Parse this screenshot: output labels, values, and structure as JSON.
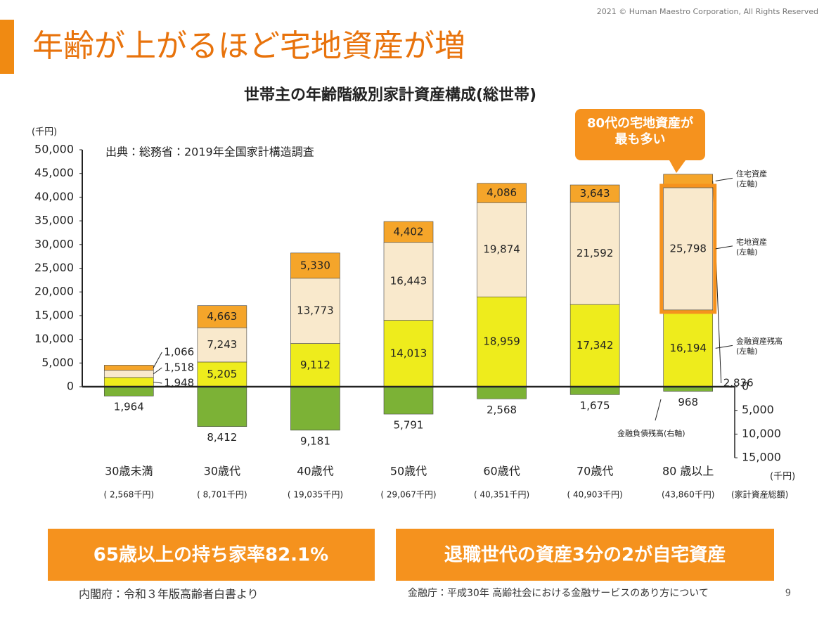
{
  "header": {
    "title": "年齢が上がるほど宅地資産が増",
    "copyright": "2021 © Human Maestro Corporation, All Rights Reserved"
  },
  "chart_data": {
    "type": "bar",
    "stacked": true,
    "title": "世帯主の年齢階級別家計資産構成(総世帯)",
    "source": "出典：総務省：2019年全国家計構造調査",
    "y_unit": "(千円)",
    "y2_unit": "(千円)",
    "category_notes_label": "(家計資産総額)",
    "annotation": "80代の宅地資産が\n最も多い",
    "categories": [
      "30歳未満",
      "30歳代",
      "40歳代",
      "50歳代",
      "60歳代",
      "70歳代",
      "80 歳以上"
    ],
    "category_notes": [
      "( 2,568千円)",
      "( 8,701千円)",
      "( 19,035千円)",
      "( 29,067千円)",
      "( 40,351千円)",
      "( 40,903千円)",
      "(43,860千円)"
    ],
    "series": [
      {
        "name": "金融資産残高\n(左軸)",
        "color": "#eeec1c",
        "values": [
          1948,
          5205,
          9112,
          14013,
          18959,
          17342,
          16194
        ],
        "value_labels": [
          "1,948",
          "5,205",
          "9,112",
          "14,013",
          "18,959",
          "17,342",
          "16,194"
        ]
      },
      {
        "name": "宅地資産\n(左軸)",
        "color": "#f9e9cc",
        "values": [
          1518,
          7243,
          13773,
          16443,
          19874,
          21592,
          25798
        ],
        "value_labels": [
          "1,518",
          "7,243",
          "13,773",
          "16,443",
          "19,874",
          "21,592",
          "25,798"
        ]
      },
      {
        "name": "住宅資産\n(左軸)",
        "color": "#f5a52a",
        "values": [
          1066,
          4663,
          5330,
          4402,
          4086,
          3643,
          2836
        ],
        "value_labels": [
          "1,066",
          "4,663",
          "5,330",
          "4,402",
          "4,086",
          "3,643",
          "2,836"
        ]
      },
      {
        "name": "金融負債残高(右軸)",
        "color": "#7cb236",
        "axis": "y2",
        "values": [
          1964,
          8412,
          9181,
          5791,
          2568,
          1675,
          968
        ],
        "value_labels": [
          "1,964",
          "8,412",
          "9,181",
          "5,791",
          "2,568",
          "1,675",
          "968"
        ]
      }
    ],
    "ylim": [
      0,
      50000
    ],
    "yticks": [
      0,
      {
        "value": 5000,
        "label": "5,000"
      },
      {
        "value": 10000,
        "label": "10,000"
      },
      {
        "value": 15000,
        "label": "15,000"
      },
      {
        "value": 20000,
        "label": "20,000"
      },
      {
        "value": 25000,
        "label": "25,000"
      },
      {
        "value": 30000,
        "label": "30,000"
      },
      {
        "value": 35000,
        "label": "35,000"
      },
      {
        "value": 40000,
        "label": "40,000"
      },
      {
        "value": 45000,
        "label": "45,000"
      },
      {
        "value": 50000,
        "label": "50,000"
      }
    ],
    "y2lim": [
      0,
      15000
    ],
    "y2ticks": [
      0,
      {
        "value": 5000,
        "label": "5,000"
      },
      {
        "value": 10000,
        "label": "10,000"
      },
      {
        "value": 15000,
        "label": "15,000"
      }
    ]
  },
  "boxes": [
    "65歳以上の持ち家率82.1%",
    "退職世代の資産3分の2が自宅資産"
  ],
  "footer": {
    "source_left": "内閣府：令和３年版高齢者白書より",
    "source_right": "金融庁：平成30年 高齢社会における金融サービスのあり方について",
    "page": "9"
  }
}
